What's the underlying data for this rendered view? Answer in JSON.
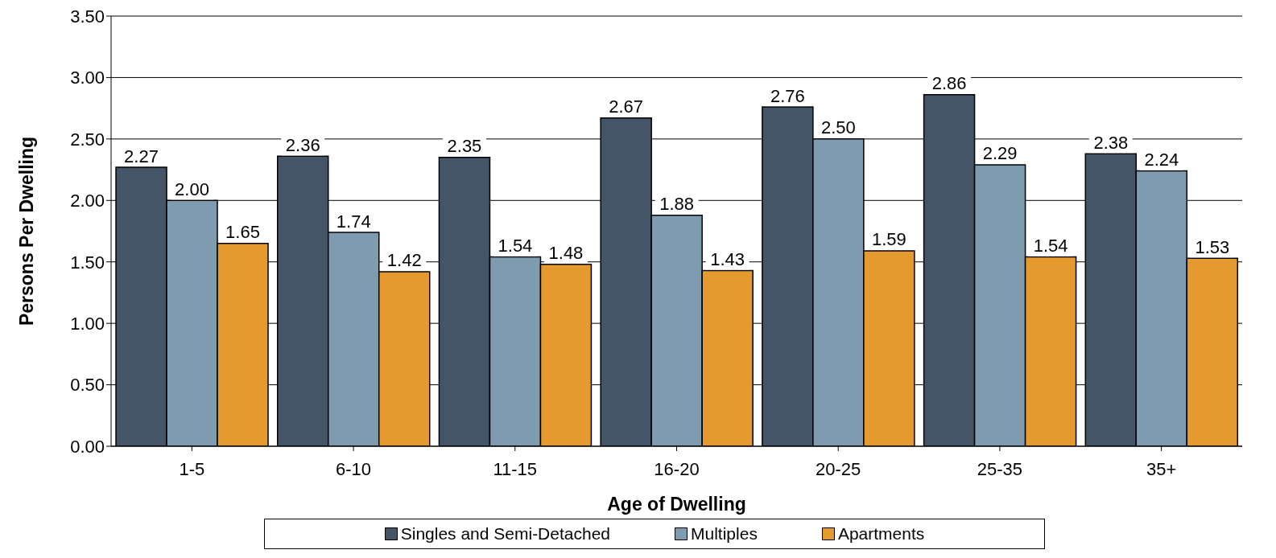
{
  "chart_data": {
    "type": "bar",
    "xlabel": "Age of Dwelling",
    "ylabel": "Persons Per Dwelling",
    "categories": [
      "1-5",
      "6-10",
      "11-15",
      "16-20",
      "20-25",
      "25-35",
      "35+"
    ],
    "series": [
      {
        "name": "Singles and Semi-Detached",
        "color": "#435566",
        "values": [
          2.27,
          2.36,
          2.35,
          2.67,
          2.76,
          2.86,
          2.38
        ],
        "value_labels": [
          "2.27",
          "2.36",
          "2.35",
          "2.67",
          "2.76",
          "2.86",
          "2.38"
        ]
      },
      {
        "name": "Multiples",
        "color": "#7f9bb0",
        "values": [
          2.0,
          1.74,
          1.54,
          1.88,
          2.5,
          2.29,
          2.24
        ],
        "value_labels": [
          "2.00",
          "1.74",
          "1.54",
          "1.88",
          "2.50",
          "2.29",
          "2.24"
        ]
      },
      {
        "name": "Apartments",
        "color": "#e59a2f",
        "values": [
          1.65,
          1.42,
          1.48,
          1.43,
          1.59,
          1.54,
          1.53
        ],
        "value_labels": [
          "1.65",
          "1.42",
          "1.48",
          "1.43",
          "1.59",
          "1.54",
          "1.53"
        ]
      }
    ],
    "ylim": [
      0,
      3.5
    ],
    "yticks": [
      {
        "value": 0,
        "label": "0.00"
      },
      {
        "value": 0.5,
        "label": "0.50"
      },
      {
        "value": 1,
        "label": "1.00"
      },
      {
        "value": 1.5,
        "label": "1.50"
      },
      {
        "value": 2,
        "label": "2.00"
      },
      {
        "value": 2.5,
        "label": "2.50"
      },
      {
        "value": 3,
        "label": "3.00"
      },
      {
        "value": 3.5,
        "label": "3.50"
      }
    ],
    "grid": "y",
    "legend": "bottom"
  }
}
